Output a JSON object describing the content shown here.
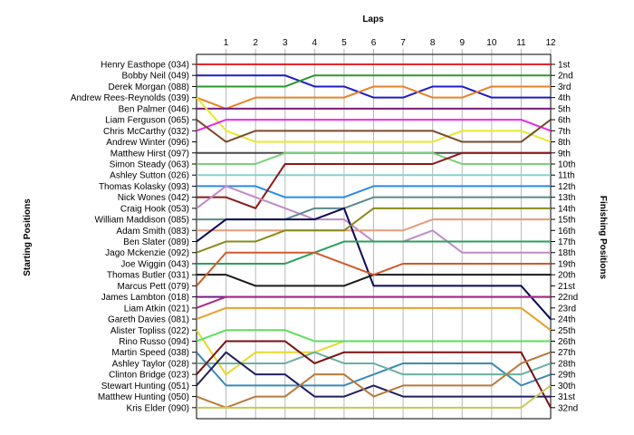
{
  "chart_data": {
    "type": "line",
    "title": "Laps",
    "ylabel_left": "Starting Positions",
    "ylabel_right": "Finishing Positions",
    "x": [
      0,
      1,
      2,
      3,
      4,
      5,
      6,
      7,
      8,
      9,
      10,
      11,
      12
    ],
    "x_tick_labels": [
      "1",
      "2",
      "3",
      "4",
      "5",
      "6",
      "7",
      "8",
      "9",
      "10",
      "11",
      "12"
    ],
    "starting_labels": [
      "Henry Easthope (034)",
      "Bobby Neil (049)",
      "Derek Morgan (088)",
      "Andrew Rees-Reynolds (039)",
      "Ben Palmer (046)",
      "Liam Ferguson (065)",
      "Chris McCarthy (032)",
      "Andrew Winter (096)",
      "Matthew Hirst (097)",
      "Simon Steady (063)",
      "Ashley Sutton (026)",
      "Thomas Kolasky (093)",
      "Nick Wones (042)",
      "Craig Hook (053)",
      "William Maddison (085)",
      "Adam Smith (083)",
      "Ben Slater (089)",
      "Jago Mckenzie (092)",
      "Joe Wiggin (043)",
      "Thomas Butler (031)",
      "Marcus Pett (079)",
      "James Lambton (018)",
      "Liam Atkin (021)",
      "Gareth Davies (081)",
      "Alister Topliss (022)",
      "Rino Russo (094)",
      "Martin Speed (038)",
      "Ashley Taylor (028)",
      "Clinton Bridge (023)",
      "Stewart Hunting (051)",
      "Matthew Hunting (050)",
      "Kris Elder (090)"
    ],
    "finishing_labels": [
      "1st",
      "2nd",
      "3rd",
      "4th",
      "5th",
      "6th",
      "7th",
      "8th",
      "9th",
      "10th",
      "11th",
      "12th",
      "13th",
      "14th",
      "15th",
      "16th",
      "17th",
      "18th",
      "19th",
      "20th",
      "21st",
      "22nd",
      "23rd",
      "24th",
      "25th",
      "26th",
      "27th",
      "28th",
      "29th",
      "30th",
      "31st",
      "32nd"
    ],
    "series": [
      {
        "color": "#e8252a",
        "positions": [
          1,
          1,
          1,
          1,
          1,
          1,
          1,
          1,
          1,
          1,
          1,
          1,
          1
        ]
      },
      {
        "color": "#1c1cc8",
        "positions": [
          2,
          2,
          2,
          2,
          3,
          3,
          4,
          4,
          3,
          3,
          4,
          4,
          4
        ]
      },
      {
        "color": "#2a9a2a",
        "positions": [
          3,
          3,
          3,
          3,
          2,
          2,
          2,
          2,
          2,
          2,
          2,
          2,
          2
        ]
      },
      {
        "color": "#e8832a",
        "positions": [
          4,
          5,
          4,
          4,
          4,
          4,
          3,
          3,
          4,
          4,
          3,
          3,
          3
        ]
      },
      {
        "color": "#7a1a7a",
        "positions": [
          5,
          5,
          5,
          5,
          5,
          5,
          5,
          5,
          5,
          5,
          5,
          5,
          5
        ]
      },
      {
        "color": "#e8e82a",
        "positions": [
          4,
          7,
          8,
          8,
          8,
          8,
          8,
          8,
          8,
          7,
          7,
          7,
          8
        ]
      },
      {
        "color": "#e82ae8",
        "positions": [
          7,
          6,
          6,
          6,
          6,
          6,
          6,
          6,
          6,
          6,
          6,
          6,
          7
        ]
      },
      {
        "color": "#7a4a2a",
        "positions": [
          6,
          8,
          7,
          7,
          7,
          7,
          7,
          7,
          7,
          8,
          8,
          8,
          6
        ]
      },
      {
        "color": "#4a4a4a",
        "positions": [
          9,
          9,
          9,
          9,
          9,
          9,
          9,
          9,
          9,
          9,
          9,
          9,
          9
        ]
      },
      {
        "color": "#7ad07a",
        "positions": [
          10,
          10,
          10,
          9,
          9,
          9,
          9,
          9,
          9,
          10,
          10,
          10,
          10
        ]
      },
      {
        "color": "#8ad0d0",
        "positions": [
          11,
          11,
          11,
          11,
          11,
          11,
          11,
          11,
          11,
          11,
          11,
          11,
          11
        ]
      },
      {
        "color": "#2a8ae8",
        "positions": [
          12,
          12,
          12,
          13,
          13,
          13,
          12,
          12,
          12,
          12,
          12,
          12,
          12
        ]
      },
      {
        "color": "#8a1a1a",
        "positions": [
          13,
          13,
          14,
          10,
          10,
          10,
          10,
          10,
          10,
          9,
          9,
          9,
          9
        ]
      },
      {
        "color": "#c08ac8",
        "positions": [
          14,
          12,
          13,
          14,
          15,
          15,
          17,
          17,
          16,
          18,
          18,
          18,
          18
        ]
      },
      {
        "color": "#5a8a8a",
        "positions": [
          15,
          15,
          15,
          15,
          14,
          14,
          13,
          13,
          13,
          13,
          13,
          13,
          13
        ]
      },
      {
        "color": "#e89a7a",
        "positions": [
          16,
          16,
          16,
          16,
          16,
          16,
          16,
          16,
          15,
          15,
          15,
          15,
          15
        ]
      },
      {
        "color": "#0a0a5a",
        "positions": [
          17,
          15,
          15,
          15,
          15,
          14,
          21,
          21,
          21,
          21,
          21,
          21,
          24
        ]
      },
      {
        "color": "#8a8a1a",
        "positions": [
          18,
          17,
          17,
          16,
          16,
          16,
          14,
          14,
          14,
          14,
          14,
          14,
          14
        ]
      },
      {
        "color": "#2aa05a",
        "positions": [
          19,
          19,
          19,
          19,
          18,
          17,
          17,
          17,
          17,
          17,
          17,
          17,
          17
        ]
      },
      {
        "color": "#1a1a1a",
        "positions": [
          20,
          20,
          21,
          21,
          21,
          21,
          20,
          20,
          20,
          20,
          20,
          20,
          20
        ]
      },
      {
        "color": "#d05a2a",
        "positions": [
          21,
          18,
          18,
          18,
          18,
          19,
          20,
          19,
          19,
          19,
          19,
          19,
          19
        ]
      },
      {
        "color": "#7a1a8a",
        "positions": [
          22,
          22,
          22,
          22,
          22,
          22,
          22,
          22,
          22,
          22,
          22,
          22,
          22
        ]
      },
      {
        "color": "#a82a8a",
        "positions": [
          23,
          22,
          22,
          22,
          22,
          22,
          22,
          22,
          22,
          22,
          22,
          22,
          22
        ]
      },
      {
        "color": "#e8a02a",
        "positions": [
          24,
          23,
          23,
          23,
          23,
          23,
          23,
          23,
          23,
          23,
          23,
          23,
          25
        ]
      },
      {
        "color": "#e8d82a",
        "positions": [
          25,
          29,
          27,
          27,
          27,
          26,
          26,
          26,
          26,
          26,
          26,
          26,
          26
        ]
      },
      {
        "color": "#5ae05a",
        "positions": [
          26,
          25,
          25,
          25,
          26,
          26,
          26,
          26,
          26,
          26,
          26,
          26,
          26
        ]
      },
      {
        "color": "#3a8ab8",
        "positions": [
          27,
          30,
          30,
          30,
          30,
          30,
          29,
          28,
          28,
          28,
          28,
          30,
          29
        ]
      },
      {
        "color": "#6ab0a0",
        "positions": [
          28,
          28,
          28,
          28,
          27,
          28,
          28,
          29,
          29,
          29,
          29,
          29,
          28
        ]
      },
      {
        "color": "#7a1010",
        "positions": [
          29,
          26,
          26,
          26,
          28,
          27,
          27,
          27,
          27,
          27,
          27,
          27,
          32
        ]
      },
      {
        "color": "#202060",
        "positions": [
          30,
          27,
          29,
          29,
          31,
          31,
          30,
          31,
          31,
          31,
          31,
          31,
          31
        ]
      },
      {
        "color": "#b87a3a",
        "positions": [
          31,
          32,
          31,
          31,
          29,
          29,
          31,
          30,
          30,
          30,
          30,
          28,
          27
        ]
      },
      {
        "color": "#c8c85a",
        "positions": [
          32,
          32,
          32,
          32,
          32,
          32,
          32,
          32,
          32,
          32,
          32,
          32,
          30
        ]
      }
    ]
  }
}
